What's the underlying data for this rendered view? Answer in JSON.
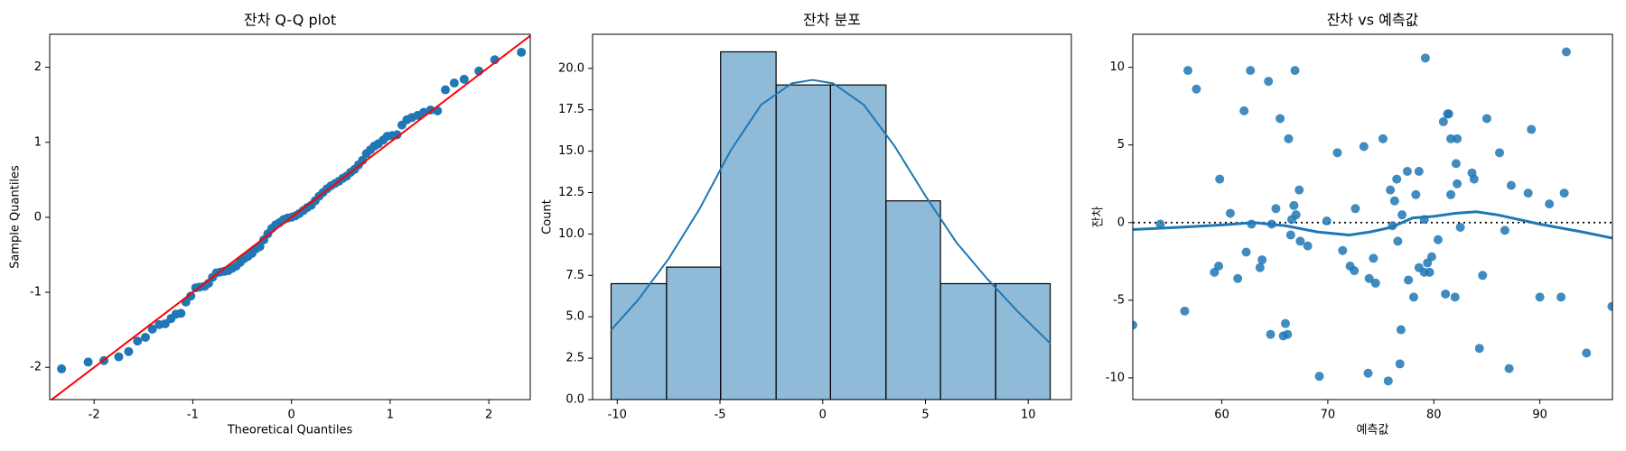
{
  "chart_data": [
    {
      "type": "qq",
      "title": "잔차 Q-Q plot",
      "xlabel": "Theoretical Quantiles",
      "ylabel": "Sample Quantiles",
      "color": "#1f77b4",
      "x": [
        -2.33,
        -2.06,
        -1.9,
        -1.75,
        -1.65,
        -1.56,
        -1.48,
        -1.41,
        -1.34,
        -1.28,
        -1.22,
        -1.17,
        -1.12,
        -1.07,
        -1.02,
        -0.97,
        -0.93,
        -0.88,
        -0.84,
        -0.8,
        -0.76,
        -0.72,
        -0.68,
        -0.64,
        -0.6,
        -0.56,
        -0.52,
        -0.48,
        -0.44,
        -0.4,
        -0.36,
        -0.32,
        -0.28,
        -0.24,
        -0.2,
        -0.16,
        -0.12,
        -0.08,
        -0.04,
        0,
        0.04,
        0.08,
        0.12,
        0.16,
        0.2,
        0.24,
        0.28,
        0.32,
        0.36,
        0.4,
        0.44,
        0.48,
        0.52,
        0.56,
        0.6,
        0.64,
        0.68,
        0.72,
        0.76,
        0.8,
        0.84,
        0.88,
        0.93,
        0.97,
        1.02,
        1.07,
        1.12,
        1.17,
        1.22,
        1.28,
        1.34,
        1.41,
        1.48,
        1.56,
        1.65,
        1.75,
        1.9,
        2.06,
        2.33
      ],
      "values": [
        -2.02,
        -1.93,
        -1.91,
        -1.86,
        -1.79,
        -1.65,
        -1.6,
        -1.49,
        -1.43,
        -1.42,
        -1.35,
        -1.29,
        -1.28,
        -1.13,
        -1.05,
        -0.94,
        -0.93,
        -0.92,
        -0.88,
        -0.8,
        -0.74,
        -0.73,
        -0.72,
        -0.71,
        -0.68,
        -0.65,
        -0.6,
        -0.55,
        -0.52,
        -0.48,
        -0.42,
        -0.39,
        -0.3,
        -0.22,
        -0.15,
        -0.1,
        -0.07,
        -0.03,
        -0.01,
        0,
        0.02,
        0.05,
        0.09,
        0.13,
        0.16,
        0.22,
        0.28,
        0.33,
        0.38,
        0.42,
        0.45,
        0.48,
        0.52,
        0.55,
        0.6,
        0.64,
        0.7,
        0.76,
        0.85,
        0.9,
        0.95,
        0.98,
        1.03,
        1.08,
        1.09,
        1.1,
        1.23,
        1.3,
        1.33,
        1.36,
        1.4,
        1.43,
        1.42,
        1.7,
        1.79,
        1.84,
        1.95,
        2.1,
        2.2
      ],
      "reference_line": {
        "slope": 1,
        "intercept": 0,
        "color": "#ff0000"
      },
      "xlim": [
        -2.45,
        2.42
      ],
      "ylim": [
        -2.43,
        2.44
      ],
      "xticks": [
        -2,
        -1,
        0,
        1,
        2
      ],
      "yticks": [
        -2,
        -1,
        0,
        1,
        2
      ]
    },
    {
      "type": "histogram",
      "title": "잔차 분포",
      "ylabel": "Count",
      "color": "#1f77b4",
      "bins": [
        -10.3,
        -7.6,
        -4.97,
        -2.27,
        0.38,
        3.08,
        5.73,
        8.42,
        11.07
      ],
      "counts": [
        7,
        8,
        21,
        19,
        19,
        12,
        7,
        7
      ],
      "kde": {
        "x": [
          -10.3,
          -9,
          -7.5,
          -6,
          -4.5,
          -3,
          -1.5,
          -0.5,
          0.5,
          2,
          3.5,
          5,
          6.5,
          8,
          9.5,
          11.07
        ],
        "values": [
          4.2,
          6,
          8.5,
          11.5,
          15,
          17.8,
          19.1,
          19.3,
          19.1,
          17.8,
          15.3,
          12.3,
          9.5,
          7.3,
          5.3,
          3.4
        ]
      },
      "xlim": [
        -11.2,
        12.1
      ],
      "ylim": [
        0,
        22.06
      ],
      "xticks": [
        -10,
        -5,
        0,
        5,
        10
      ],
      "yticks": [
        {
          "value": 0,
          "label": "0.0"
        },
        {
          "value": 2.5,
          "label": "2.5"
        },
        {
          "value": 5,
          "label": "5.0"
        },
        {
          "value": 7.5,
          "label": "7.5"
        },
        {
          "value": 10,
          "label": "10.0"
        },
        {
          "value": 12.5,
          "label": "12.5"
        },
        {
          "value": 15,
          "label": "15.0"
        },
        {
          "value": 17.5,
          "label": "17.5"
        },
        {
          "value": 20,
          "label": "20.0"
        }
      ]
    },
    {
      "type": "scatter",
      "title": "잔차 vs 예측값",
      "xlabel": "예측값",
      "ylabel": "잔차",
      "color": "#1f77b4",
      "x": [
        51.6,
        54.2,
        56.5,
        56.8,
        57.6,
        59.3,
        59.7,
        59.8,
        60.8,
        61.5,
        62.1,
        62.3,
        62.7,
        62.8,
        63.6,
        63.8,
        64.4,
        64.6,
        64.7,
        65.1,
        65.5,
        65.8,
        66.0,
        66.2,
        66.3,
        66.5,
        66.6,
        66.8,
        66.9,
        67.0,
        67.3,
        67.4,
        68.1,
        69.2,
        69.9,
        70.9,
        71.4,
        72.1,
        72.5,
        72.6,
        73.4,
        73.8,
        73.9,
        74.3,
        74.5,
        75.2,
        75.7,
        75.9,
        76.1,
        76.3,
        76.5,
        76.6,
        76.8,
        76.9,
        77.0,
        77.5,
        77.6,
        78.1,
        78.3,
        78.6,
        78.6,
        79.1,
        79.1,
        79.2,
        79.4,
        79.6,
        79.8,
        80.4,
        80.9,
        81.1,
        81.3,
        81.4,
        81.6,
        81.6,
        82.0,
        82.1,
        82.2,
        82.2,
        82.5,
        83.6,
        83.8,
        84.3,
        84.6,
        85.0,
        86.2,
        86.7,
        87.1,
        87.3,
        88.9,
        89.2,
        90.0,
        90.9,
        92.0,
        92.3,
        92.5,
        94.4,
        96.8
      ],
      "values": [
        -6.6,
        -0.1,
        -5.7,
        9.8,
        8.6,
        -3.2,
        -2.8,
        2.8,
        0.6,
        -3.6,
        7.2,
        -1.9,
        9.8,
        -0.1,
        -2.9,
        -2.4,
        9.1,
        -7.2,
        -0.1,
        0.9,
        6.7,
        -7.3,
        -6.5,
        -7.2,
        5.4,
        -0.8,
        0.2,
        1.1,
        9.8,
        0.5,
        2.1,
        -1.2,
        -1.5,
        -9.9,
        0.1,
        4.5,
        -1.8,
        -2.8,
        -3.1,
        0.9,
        4.9,
        -9.7,
        -3.6,
        -2.3,
        -3.9,
        5.4,
        -10.2,
        2.1,
        -0.2,
        1.4,
        2.8,
        -1.2,
        -9.1,
        -6.9,
        0.5,
        3.3,
        -3.7,
        -4.8,
        1.8,
        -2.9,
        3.3,
        -3.2,
        0.2,
        10.6,
        -2.6,
        -3.2,
        -2.2,
        -1.1,
        6.5,
        -4.6,
        7.0,
        7.0,
        5.4,
        1.8,
        -4.8,
        3.8,
        2.5,
        5.4,
        -0.3,
        3.2,
        2.8,
        -8.1,
        -3.4,
        6.7,
        4.5,
        -0.5,
        -9.4,
        2.4,
        1.9,
        6.0,
        -4.8,
        1.2,
        -4.8,
        1.9,
        11.0,
        -8.4,
        -5.4
      ],
      "lowess": {
        "x": [
          51.6,
          56,
          60,
          63,
          66,
          69,
          72,
          74,
          76,
          78,
          80,
          82,
          84,
          86,
          90,
          94,
          96.85
        ],
        "values": [
          -0.45,
          -0.3,
          -0.15,
          0,
          -0.2,
          -0.6,
          -0.8,
          -0.6,
          -0.3,
          0.3,
          0.4,
          0.6,
          0.7,
          0.5,
          -0.1,
          -0.6,
          -1.0
        ]
      },
      "hline": 0,
      "xlim": [
        51.6,
        96.85
      ],
      "ylim": [
        -11.4,
        12.13
      ],
      "xticks": [
        60,
        70,
        80,
        90
      ],
      "yticks": [
        -10,
        -5,
        0,
        5,
        10
      ]
    }
  ]
}
